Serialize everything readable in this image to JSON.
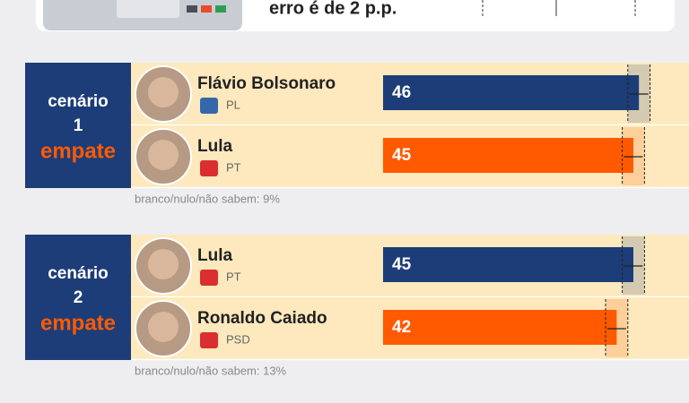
{
  "header": {
    "text": "erro é de 2 p.p."
  },
  "chart_data": [
    {
      "type": "bar",
      "label": "cenário",
      "number": "1",
      "status": "empate",
      "categories": [
        "Flávio Bolsonaro",
        "Lula"
      ],
      "parties": [
        "PL",
        "PT"
      ],
      "values": [
        46,
        45
      ],
      "errors": [
        2,
        2
      ],
      "colors": [
        "#1d3d78",
        "#ff5a00"
      ],
      "xlim": [
        0,
        55
      ],
      "note": "branco/nulo/não sabem: 9%"
    },
    {
      "type": "bar",
      "label": "cenário",
      "number": "2",
      "status": "empate",
      "categories": [
        "Lula",
        "Ronaldo Caiado"
      ],
      "parties": [
        "PT",
        "PSD"
      ],
      "values": [
        45,
        42
      ],
      "errors": [
        2,
        2
      ],
      "colors": [
        "#1d3d78",
        "#ff5a00"
      ],
      "xlim": [
        0,
        55
      ],
      "note": "branco/nulo/não sabem: 13%"
    }
  ]
}
